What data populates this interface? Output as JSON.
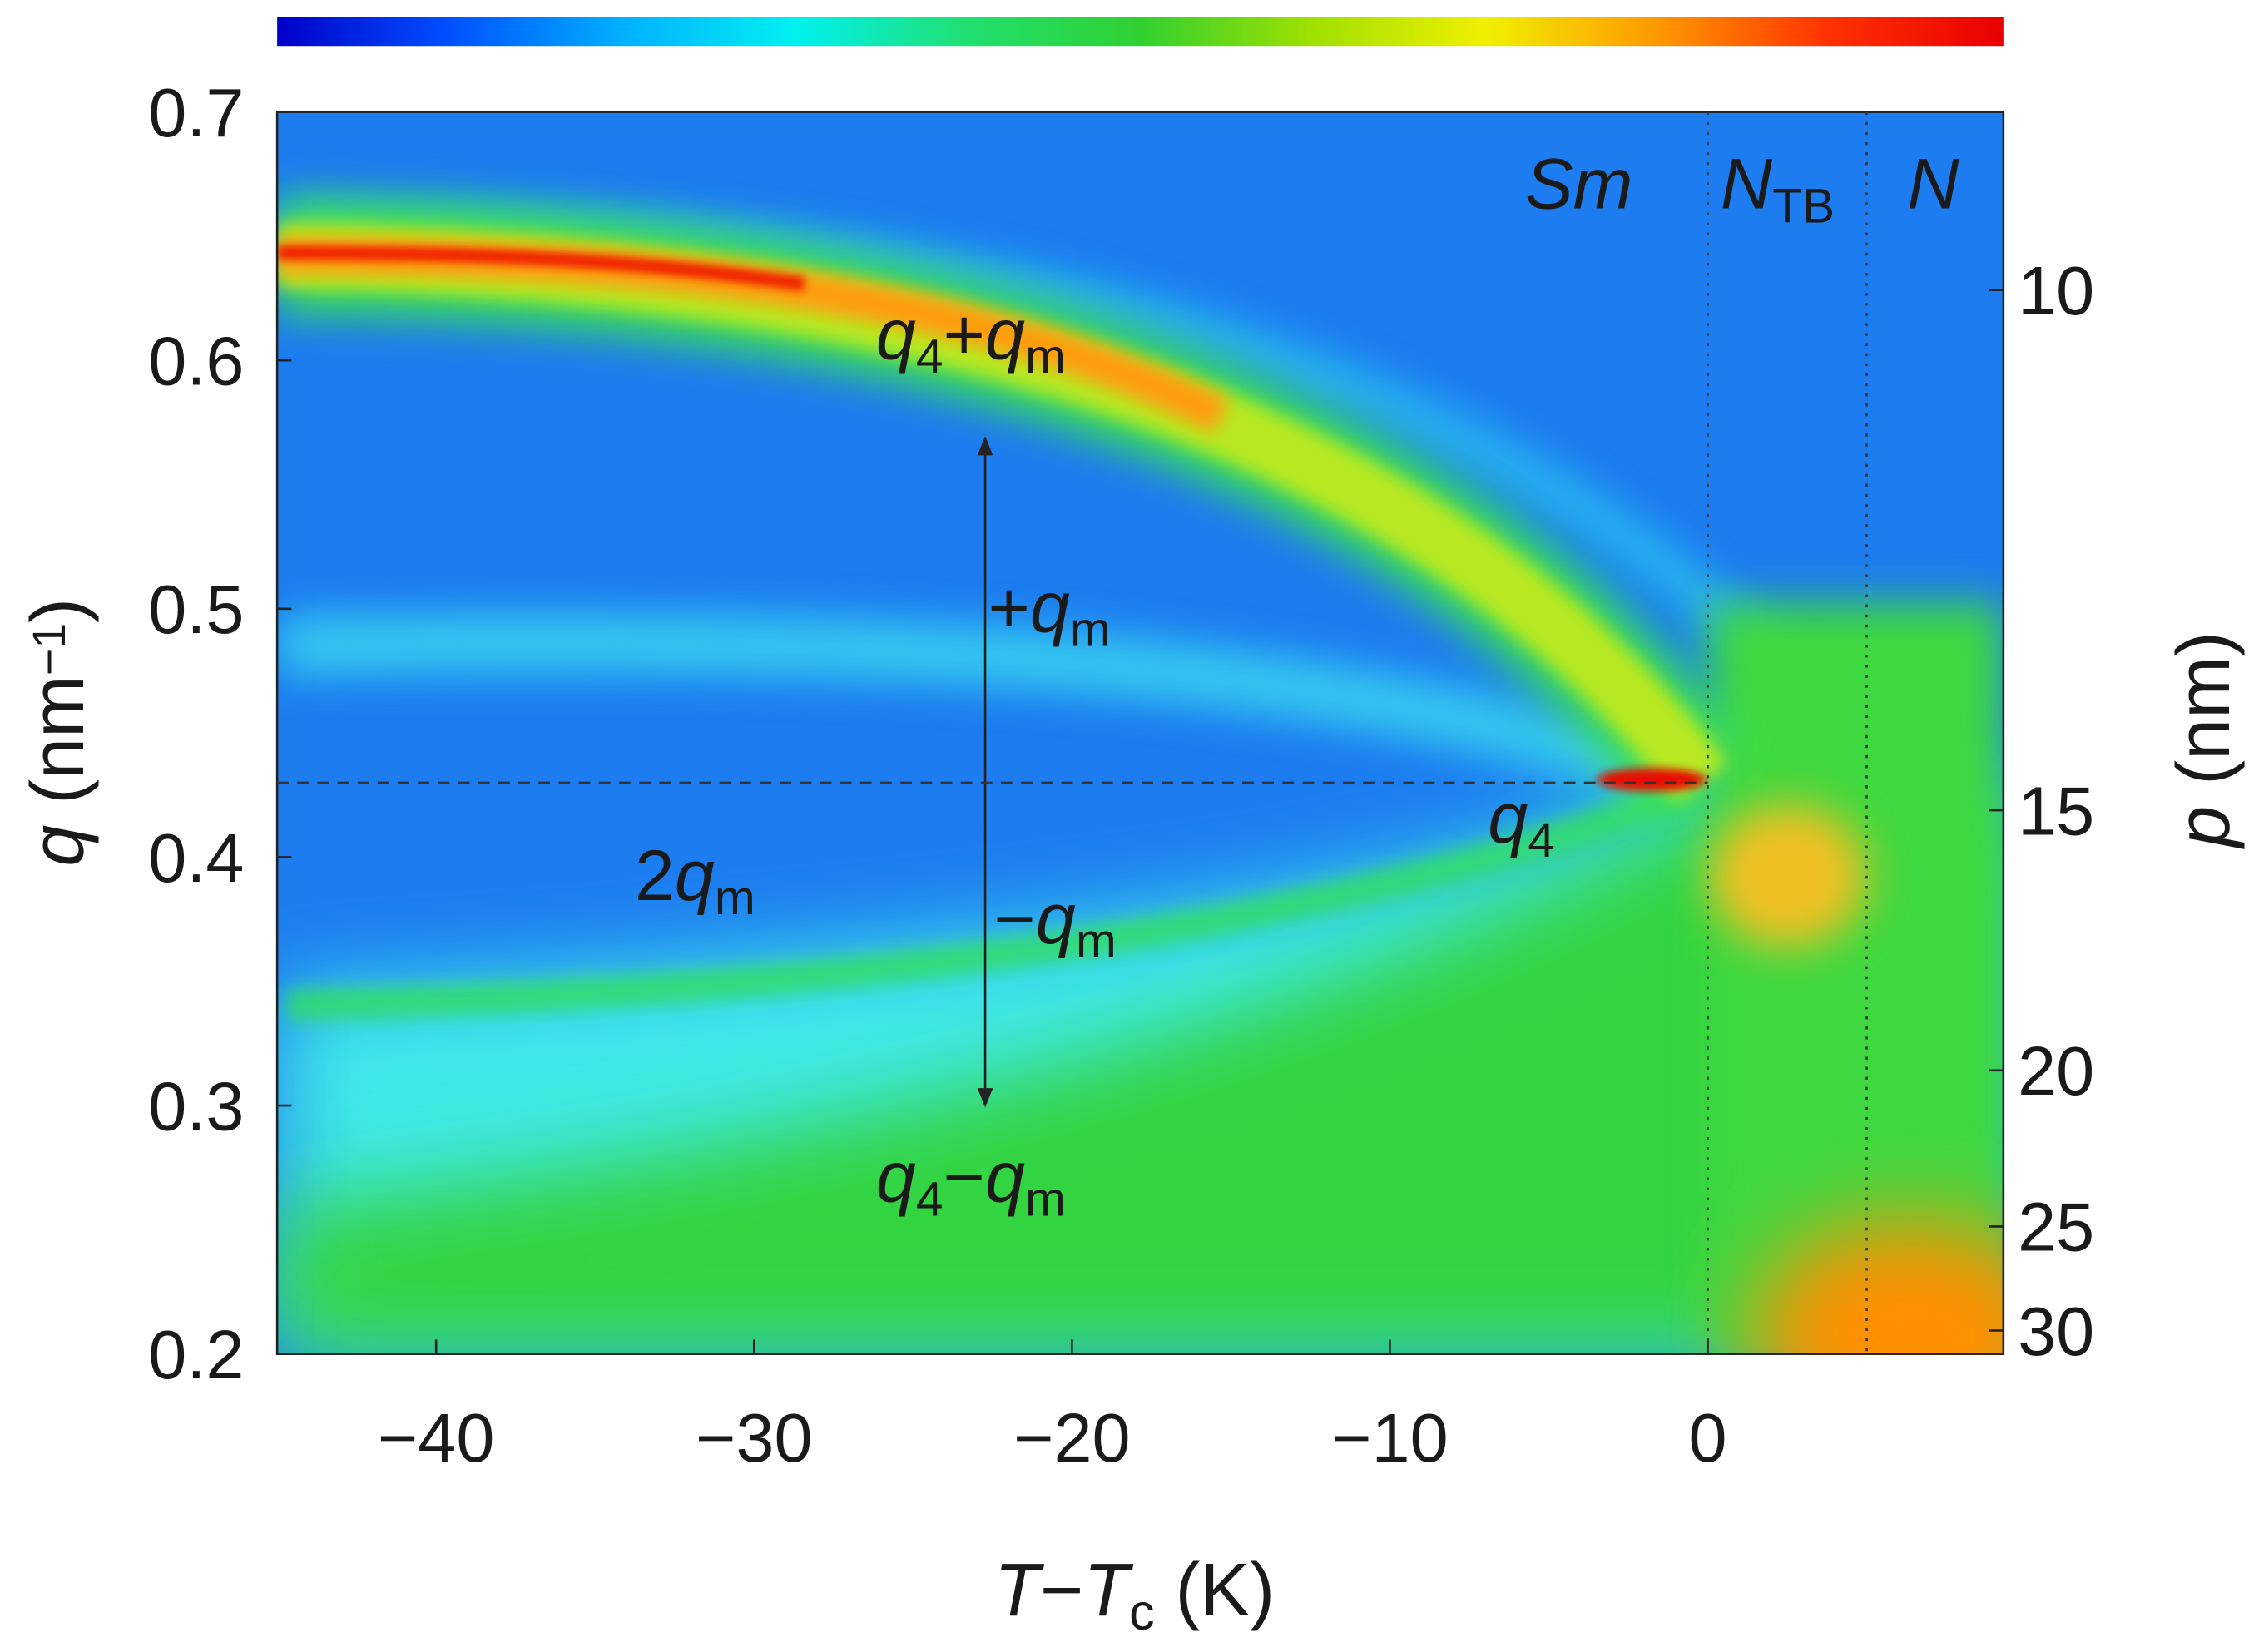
{
  "chart_data": {
    "type": "heatmap",
    "colorbar": {
      "colors": [
        "#0000c8",
        "#0050ff",
        "#00b0ff",
        "#00f0f0",
        "#20e070",
        "#30d030",
        "#a0e000",
        "#f0f000",
        "#ff9800",
        "#ff3000",
        "#e80000"
      ]
    },
    "xlabel": [
      {
        "t": "T",
        "i": true
      },
      {
        "t": "−"
      },
      {
        "t": "T",
        "i": true
      },
      {
        "t": "c",
        "sub": true
      },
      {
        "t": " (K)"
      }
    ],
    "ylabel": [
      {
        "t": "q",
        "i": true
      },
      {
        "t": " (nm"
      },
      {
        "t": "−1",
        "sup": true
      },
      {
        "t": ")"
      }
    ],
    "y2label": [
      {
        "t": "p",
        "i": true
      },
      {
        "t": " (nm)"
      }
    ],
    "xlim": [
      -45,
      9.3
    ],
    "xticks": [
      {
        "value": -40,
        "label": "−40"
      },
      {
        "value": -30,
        "label": "−30"
      },
      {
        "value": -20,
        "label": "−20"
      },
      {
        "value": -10,
        "label": "−10"
      },
      0
    ],
    "ylim": [
      0.2,
      0.7
    ],
    "yticks": [
      0.2,
      0.3,
      0.4,
      0.5,
      0.6,
      0.7
    ],
    "y2ticks": [
      10,
      15,
      20,
      25,
      30
    ],
    "y2scale": "2pi-over-q",
    "hlines": [
      0.43
    ],
    "vlines": [
      0,
      5
    ],
    "annotations": [
      [
        {
          "t": "Sm",
          "i": true
        }
      ],
      [
        {
          "t": "N",
          "i": true
        },
        {
          "t": "TB",
          "sub": true
        }
      ],
      [
        {
          "t": "N",
          "i": true
        }
      ],
      [
        {
          "t": "q",
          "i": true
        },
        {
          "t": "4",
          "sub": true
        },
        {
          "t": "+"
        },
        {
          "t": "q",
          "i": true
        },
        {
          "t": "m",
          "sub": true
        }
      ],
      [
        {
          "t": "+"
        },
        {
          "t": "q",
          "i": true
        },
        {
          "t": "m",
          "sub": true
        }
      ],
      [
        {
          "t": "2"
        },
        {
          "t": "q",
          "i": true
        },
        {
          "t": "m",
          "sub": true
        }
      ],
      [
        {
          "t": "−"
        },
        {
          "t": "q",
          "i": true
        },
        {
          "t": "m",
          "sub": true
        }
      ],
      [
        {
          "t": "q",
          "i": true
        },
        {
          "t": "4",
          "sub": true
        }
      ],
      [
        {
          "t": "q",
          "i": true
        },
        {
          "t": "4",
          "sub": true
        },
        {
          "t": "−"
        },
        {
          "t": "q",
          "i": true
        },
        {
          "t": "m",
          "sub": true
        }
      ]
    ]
  }
}
